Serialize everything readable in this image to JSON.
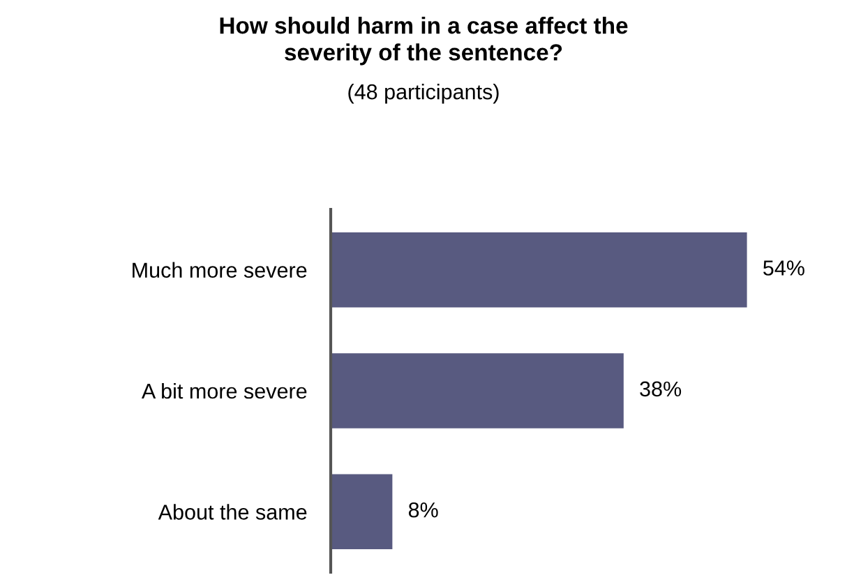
{
  "chart_data": {
    "type": "bar",
    "orientation": "horizontal",
    "title": "How should harm in a case affect the\nseverity of the sentence?",
    "subtitle": "(48 participants)",
    "categories": [
      "Much more severe",
      "A bit more severe",
      "About the same"
    ],
    "values": [
      54,
      38,
      8
    ],
    "value_labels": [
      "54%",
      "38%",
      "8%"
    ],
    "color": "#585a80",
    "grid": false,
    "legend": false
  }
}
